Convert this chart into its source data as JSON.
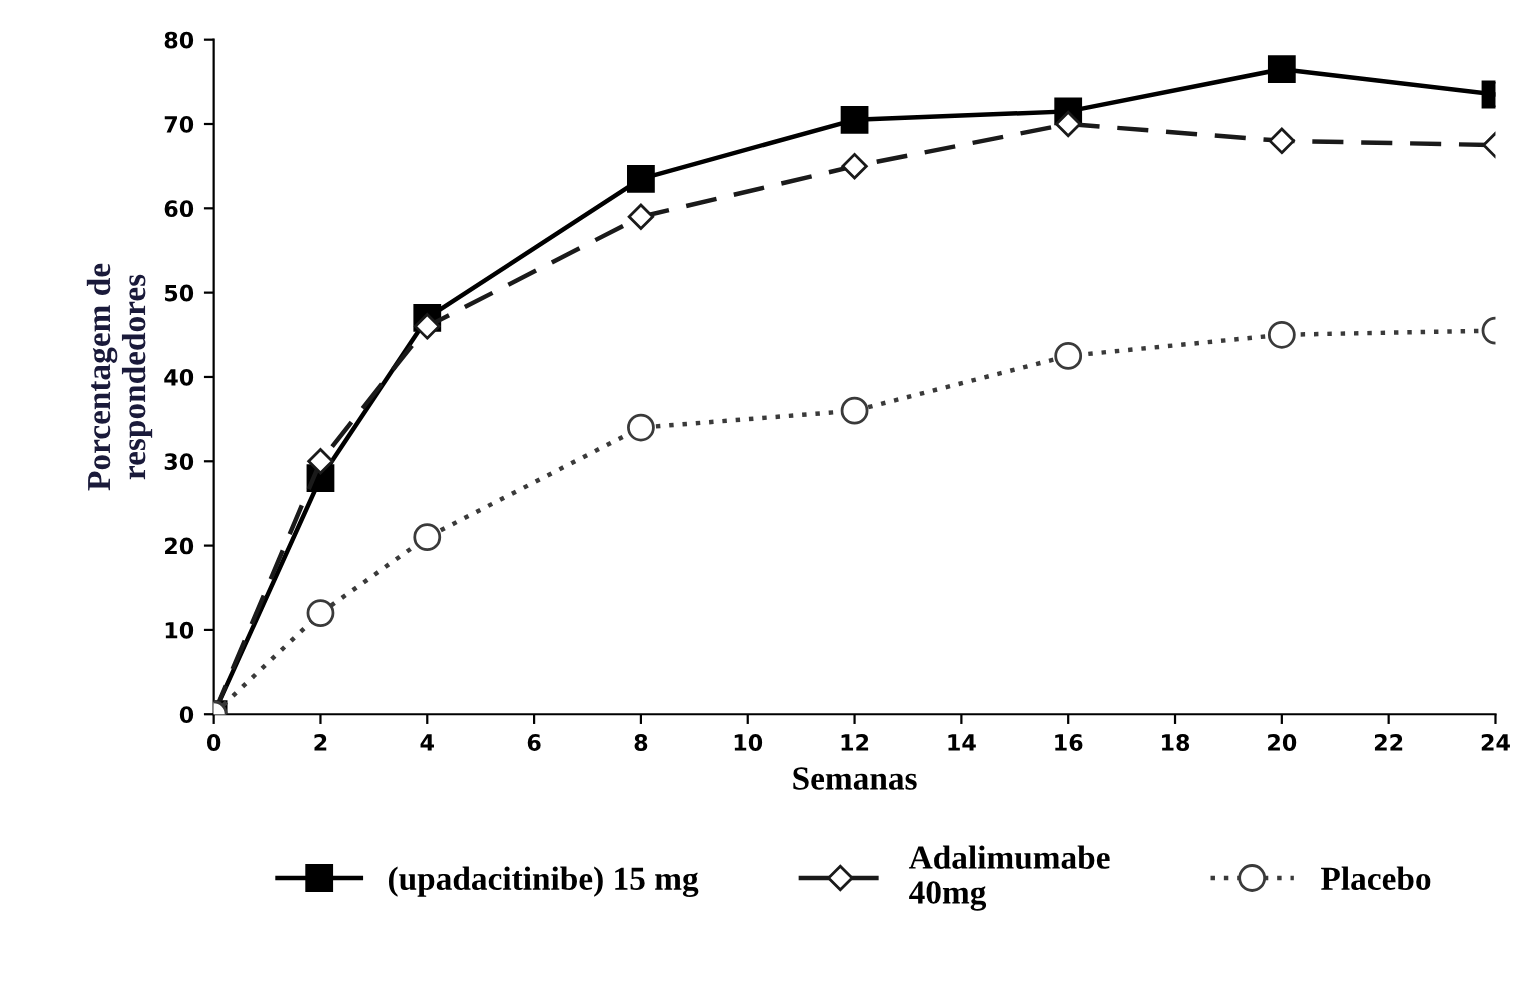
{
  "chart_data": {
    "type": "line",
    "xlabel": "Semanas",
    "ylabel": "Porcentagem de\nrespondedores",
    "x": [
      0,
      2,
      4,
      8,
      12,
      16,
      20,
      24
    ],
    "series": [
      {
        "name": "(upadacitinibe) 15 mg",
        "color": "#000000",
        "values": [
          0,
          28,
          47,
          63.5,
          70.5,
          71.5,
          76.5,
          73.5
        ],
        "marker": "square",
        "line_style": "solid"
      },
      {
        "name": "Adalimumabe\n40mg",
        "color": "#1a1a1a",
        "values": [
          0,
          30,
          46,
          59,
          65,
          70,
          68,
          67.5
        ],
        "marker": "diamond",
        "line_style": "dashed"
      },
      {
        "name": "Placebo",
        "color": "#3a3a3a",
        "values": [
          0,
          12,
          21,
          34,
          36,
          42.5,
          45,
          45.5
        ],
        "marker": "circle",
        "line_style": "dotted"
      }
    ],
    "xlim": [
      0,
      24
    ],
    "ylim": [
      0,
      80
    ],
    "xticks": [
      0,
      2,
      4,
      6,
      8,
      10,
      12,
      14,
      16,
      18,
      20,
      22,
      24
    ],
    "yticks": [
      0,
      10,
      20,
      30,
      40,
      50,
      60,
      70,
      80
    ],
    "grid": false,
    "legend": "bottom"
  }
}
